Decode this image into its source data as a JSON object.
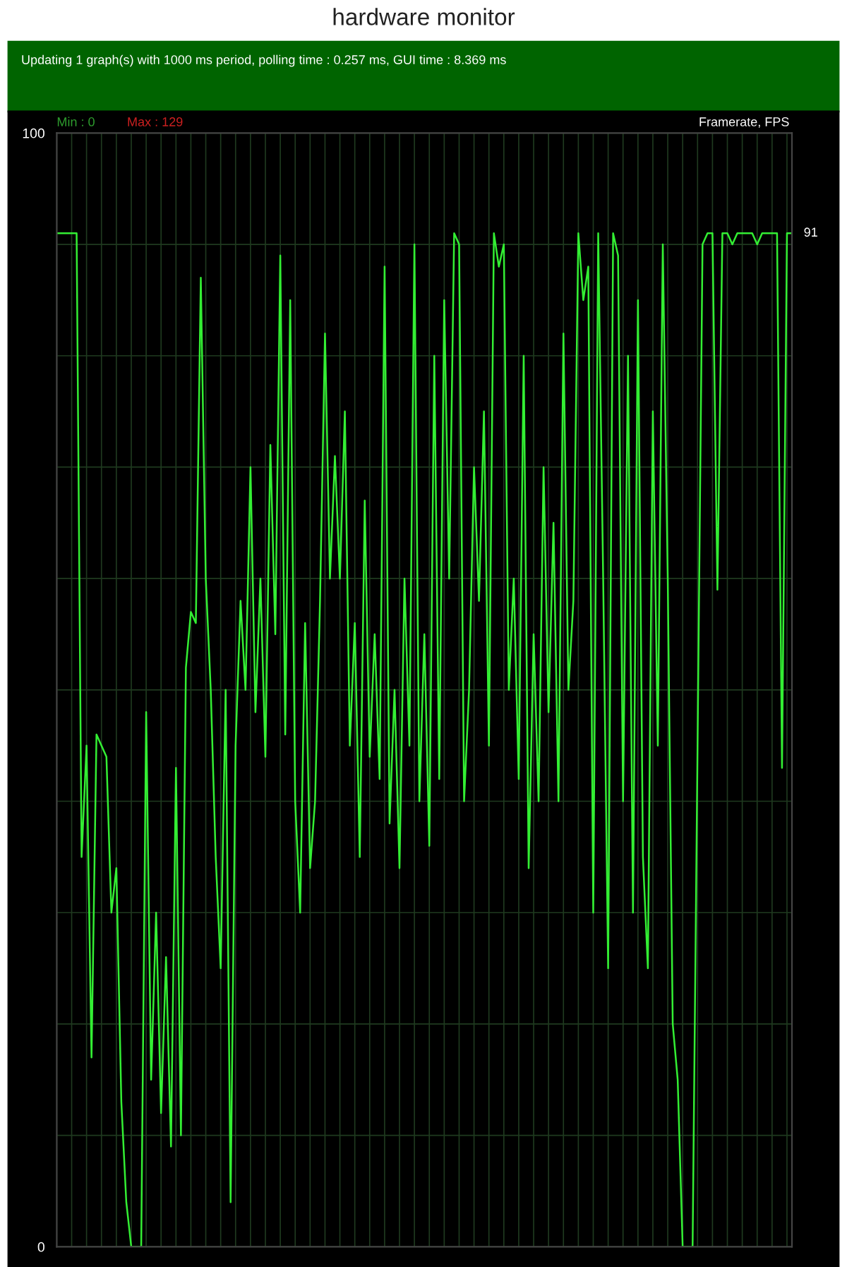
{
  "chart_data": {
    "type": "line",
    "title": "hardware monitor",
    "subtitle": "Updating 1 graph(s) with 1000 ms period, polling time : 0.257 ms, GUI time : 8.369 ms",
    "annotations": [
      "Min : 0",
      "Max : 129",
      "Framerate, FPS",
      "91"
    ],
    "ylim": [
      0,
      100
    ],
    "yticks": [
      0,
      100
    ],
    "grid": true,
    "series": [
      {
        "color": "#33ee33",
        "values": [
          91,
          91,
          91,
          91,
          91,
          35,
          45,
          17,
          46,
          45,
          44,
          30,
          34,
          13,
          4,
          0,
          0,
          0,
          48,
          15,
          30,
          12,
          26,
          9,
          43,
          10,
          52,
          57,
          56,
          87,
          60,
          50,
          35,
          25,
          50,
          4,
          45,
          58,
          50,
          70,
          48,
          60,
          44,
          72,
          55,
          89,
          46,
          85,
          40,
          30,
          56,
          34,
          40,
          58,
          82,
          60,
          71,
          60,
          75,
          45,
          56,
          35,
          67,
          44,
          55,
          42,
          88,
          38,
          50,
          34,
          60,
          45,
          90,
          40,
          55,
          36,
          80,
          42,
          85,
          60,
          91,
          90,
          40,
          50,
          70,
          58,
          75,
          45,
          91,
          88,
          90,
          50,
          60,
          42,
          80,
          34,
          55,
          40,
          70,
          48,
          65,
          40,
          82,
          50,
          58,
          91,
          85,
          88,
          30,
          91,
          60,
          25,
          91,
          89,
          40,
          80,
          30,
          85,
          35,
          25,
          75,
          45,
          90,
          60,
          20,
          15,
          0,
          0,
          0,
          45,
          90,
          91,
          91,
          59,
          91,
          91,
          90,
          91,
          91,
          91,
          91,
          90,
          91,
          91,
          91,
          91,
          43,
          91,
          91
        ]
      }
    ]
  }
}
